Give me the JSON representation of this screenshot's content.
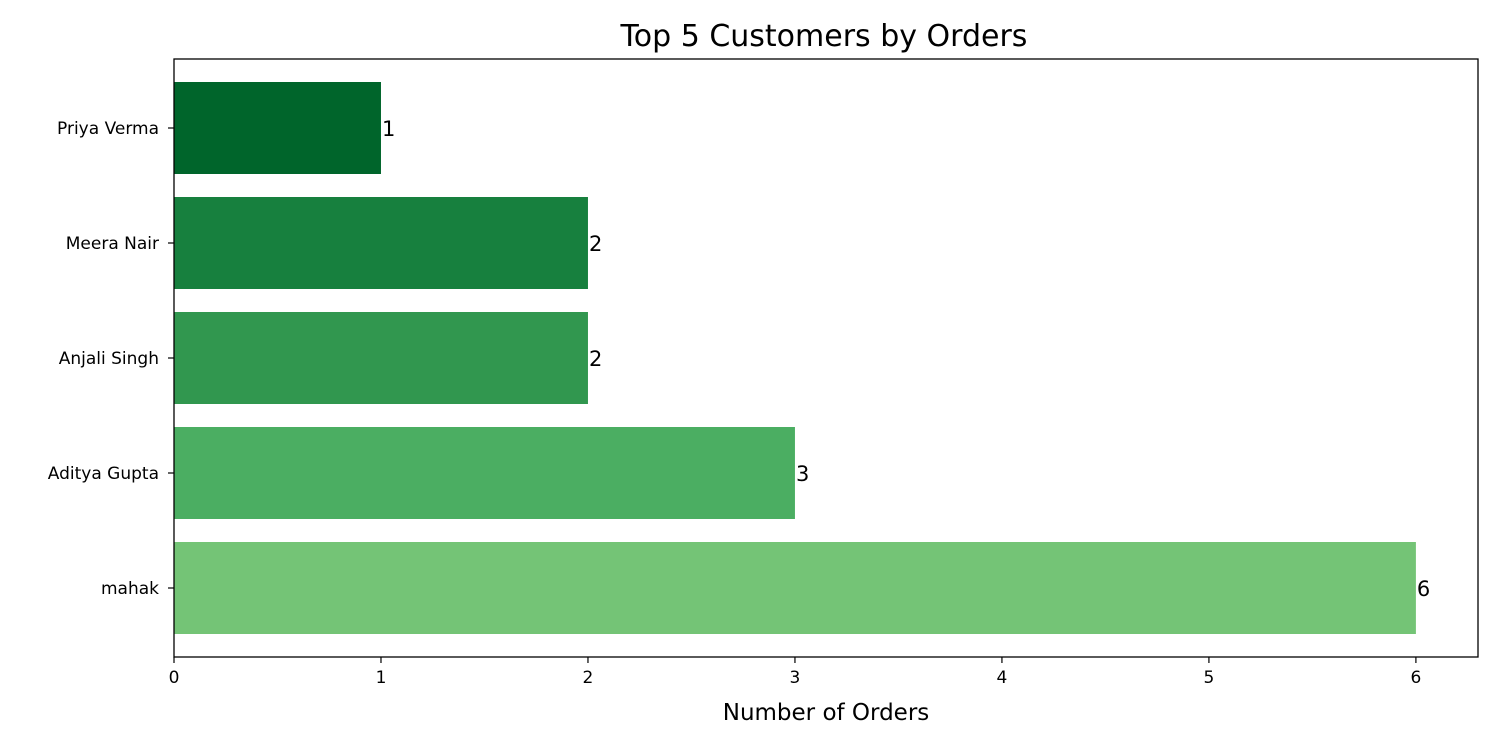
{
  "chart_data": {
    "type": "bar",
    "orientation": "horizontal",
    "title": "Top 5 Customers by Orders",
    "xlabel": "Number of Orders",
    "ylabel": "",
    "categories": [
      "mahak",
      "Aditya Gupta",
      "Anjali Singh",
      "Meera Nair",
      "Priya Verma"
    ],
    "values": [
      6,
      3,
      2,
      2,
      1
    ],
    "data_labels": [
      "6",
      "3",
      "2",
      "2",
      "1"
    ],
    "xlim": [
      0,
      6.3
    ],
    "xticks": [
      0,
      1,
      2,
      3,
      4,
      5,
      6
    ],
    "xtick_labels": [
      "0",
      "1",
      "2",
      "3",
      "4",
      "5",
      "6"
    ],
    "grid": false,
    "colors": [
      "#74c476",
      "#4bae62",
      "#31974f",
      "#17803e",
      "#00652b"
    ]
  }
}
